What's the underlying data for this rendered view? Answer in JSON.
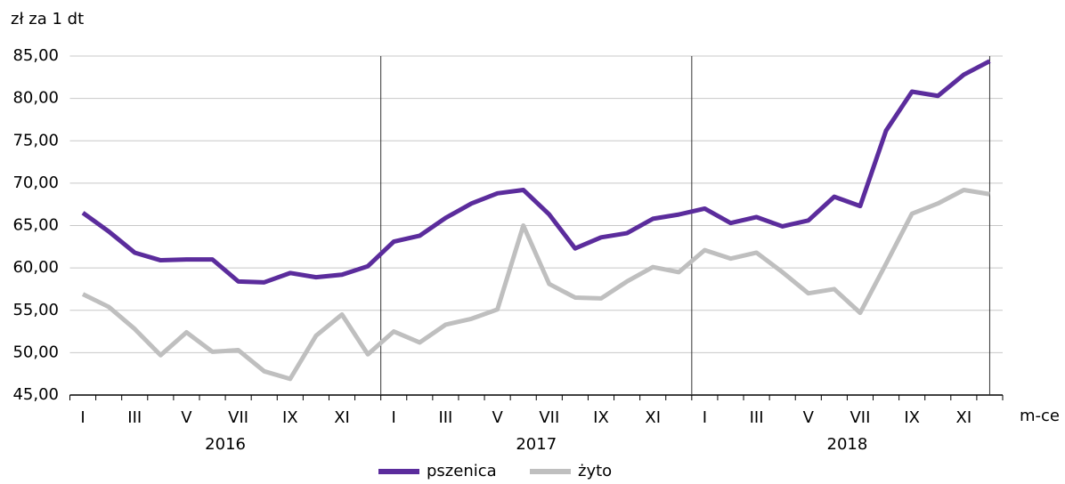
{
  "chart_data": {
    "type": "line",
    "y_label": "zł za 1 dt",
    "x_label": "m-ce",
    "categories": [
      "I",
      null,
      "III",
      null,
      "V",
      null,
      "VII",
      null,
      "IX",
      null,
      "XI",
      null,
      "I",
      null,
      "III",
      null,
      "V",
      null,
      "VII",
      null,
      "IX",
      null,
      "XI",
      null,
      "I",
      null,
      "III",
      null,
      "V",
      null,
      "VII",
      null,
      "IX",
      null,
      "XI",
      null
    ],
    "years": [
      "2016",
      "2017",
      "2018"
    ],
    "series": [
      {
        "name": "pszenica",
        "color": "#5b2c9c",
        "values": [
          66.5,
          64.3,
          61.8,
          60.9,
          61.0,
          61.0,
          58.4,
          58.3,
          59.4,
          58.9,
          59.2,
          60.2,
          63.1,
          63.8,
          65.9,
          67.6,
          68.8,
          69.2,
          66.3,
          62.3,
          63.6,
          64.1,
          65.8,
          66.3,
          67.0,
          65.3,
          66.0,
          64.9,
          65.6,
          68.4,
          67.3,
          76.2,
          80.8,
          80.3,
          82.8,
          84.4
        ]
      },
      {
        "name": "żyto",
        "color": "#bfbfbf",
        "values": [
          56.9,
          55.4,
          52.8,
          49.7,
          52.4,
          50.1,
          50.3,
          47.8,
          46.9,
          52.0,
          54.5,
          49.8,
          52.5,
          51.2,
          53.3,
          54.0,
          55.1,
          65.0,
          58.1,
          56.5,
          56.4,
          58.4,
          60.1,
          59.5,
          62.1,
          61.1,
          61.8,
          59.5,
          57.0,
          57.5,
          54.7,
          60.5,
          66.4,
          67.6,
          69.2,
          68.7
        ]
      }
    ],
    "ylim": [
      45,
      85
    ],
    "yticks": [
      {
        "value": 45,
        "label": "45,00"
      },
      {
        "value": 50,
        "label": "50,00"
      },
      {
        "value": 55,
        "label": "55,00"
      },
      {
        "value": 60,
        "label": "60,00"
      },
      {
        "value": 65,
        "label": "65,00"
      },
      {
        "value": 70,
        "label": "70,00"
      },
      {
        "value": 75,
        "label": "75,00"
      },
      {
        "value": 80,
        "label": "80,00"
      },
      {
        "value": 85,
        "label": "85,00"
      }
    ],
    "grid": true,
    "legend": "bottom"
  }
}
